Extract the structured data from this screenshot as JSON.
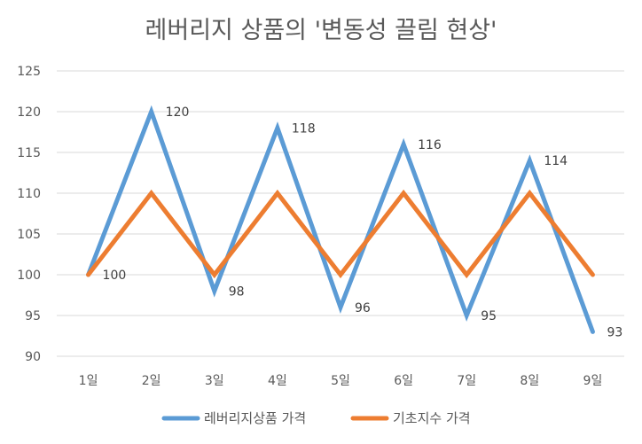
{
  "chart_data": {
    "type": "line",
    "title": "레버리지 상품의 '변동성 끌림 현상'",
    "categories": [
      "1일",
      "2일",
      "3일",
      "4일",
      "5일",
      "6일",
      "7일",
      "8일",
      "9일"
    ],
    "series": [
      {
        "name": "레버리지상품 가격",
        "color": "#5B9BD5",
        "values": [
          100,
          120,
          98,
          118,
          96,
          116,
          95,
          114,
          93
        ],
        "data_labels": true
      },
      {
        "name": "기초지수 가격",
        "color": "#ED7D31",
        "values": [
          100,
          110,
          100,
          110,
          100,
          110,
          100,
          110,
          100
        ],
        "data_labels": false
      }
    ],
    "ylim": [
      90,
      125
    ],
    "yticks": [
      90,
      95,
      100,
      105,
      110,
      115,
      120,
      125
    ],
    "grid": true,
    "legend": "bottom"
  }
}
